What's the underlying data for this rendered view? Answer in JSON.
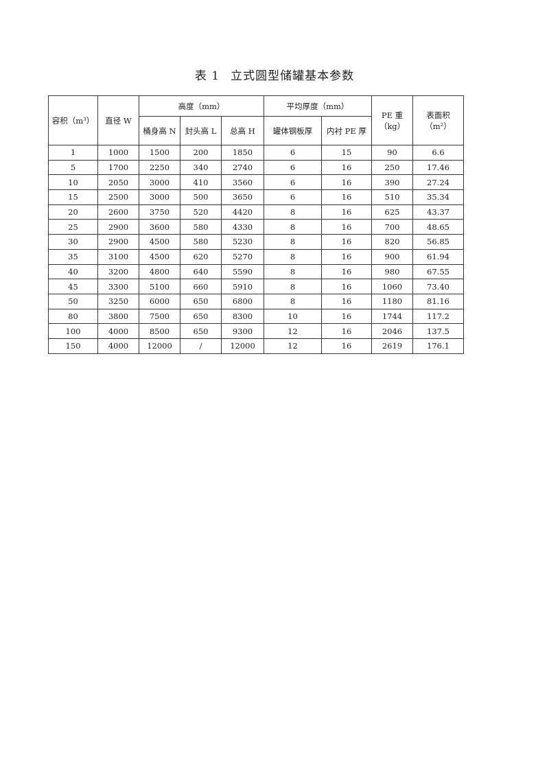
{
  "title": {
    "number": "表 1",
    "text": "立式圆型储罐基本参数"
  },
  "table": {
    "headers": {
      "volume": "容积（m³）",
      "diameter": "直径 W",
      "height_group": "高度（mm）",
      "body_height": "桶身高 N",
      "head_height": "封头高 L",
      "total_height": "总高 H",
      "thickness_group": "平均厚度（mm）",
      "steel_thickness": "罐体钢板厚",
      "pe_thickness": "内衬 PE 厚",
      "pe_weight": "PE 重",
      "pe_weight_unit": "（kg）",
      "surface_area": "表面积",
      "surface_area_unit": "（m²）"
    },
    "rows": [
      [
        "1",
        "1000",
        "1500",
        "200",
        "1850",
        "6",
        "15",
        "90",
        "6.6"
      ],
      [
        "5",
        "1700",
        "2250",
        "340",
        "2740",
        "6",
        "16",
        "250",
        "17.46"
      ],
      [
        "10",
        "2050",
        "3000",
        "410",
        "3560",
        "6",
        "16",
        "390",
        "27.24"
      ],
      [
        "15",
        "2500",
        "3000",
        "500",
        "3650",
        "6",
        "16",
        "510",
        "35.34"
      ],
      [
        "20",
        "2600",
        "3750",
        "520",
        "4420",
        "8",
        "16",
        "625",
        "43.37"
      ],
      [
        "25",
        "2900",
        "3600",
        "580",
        "4330",
        "8",
        "16",
        "700",
        "48.65"
      ],
      [
        "30",
        "2900",
        "4500",
        "580",
        "5230",
        "8",
        "16",
        "820",
        "56.85"
      ],
      [
        "35",
        "3100",
        "4500",
        "620",
        "5270",
        "8",
        "16",
        "900",
        "61.94"
      ],
      [
        "40",
        "3200",
        "4800",
        "640",
        "5590",
        "8",
        "16",
        "980",
        "67.55"
      ],
      [
        "45",
        "3300",
        "5100",
        "660",
        "5910",
        "8",
        "16",
        "1060",
        "73.40"
      ],
      [
        "50",
        "3250",
        "6000",
        "650",
        "6800",
        "8",
        "16",
        "1180",
        "81.16"
      ],
      [
        "80",
        "3800",
        "7500",
        "650",
        "8300",
        "10",
        "16",
        "1744",
        "117.2"
      ],
      [
        "100",
        "4000",
        "8500",
        "650",
        "9300",
        "12",
        "16",
        "2046",
        "137.5"
      ],
      [
        "150",
        "4000",
        "12000",
        "/",
        "12000",
        "12",
        "16",
        "2619",
        "176.1"
      ]
    ]
  }
}
